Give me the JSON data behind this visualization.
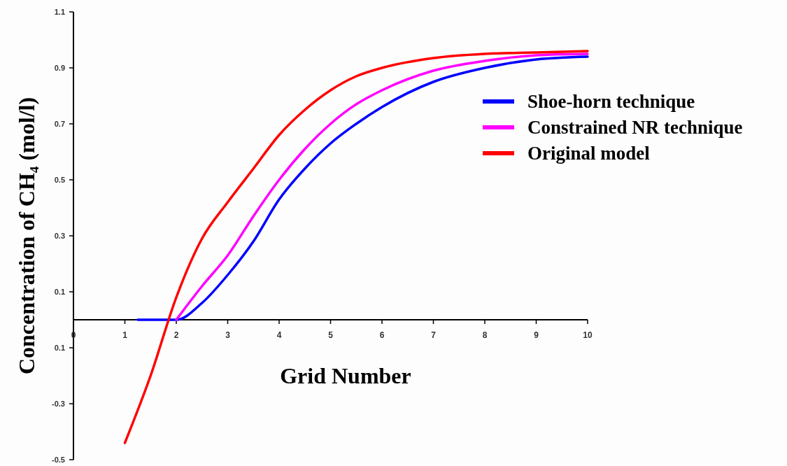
{
  "chart_data": {
    "type": "line",
    "xlabel": "Grid Number",
    "ylabel": "Concentration of CH₄ (mol/l)",
    "xlim": [
      0,
      10
    ],
    "xticks": [
      0,
      1,
      2,
      3,
      4,
      5,
      6,
      7,
      8,
      9,
      10
    ],
    "ylim": [
      -0.5,
      1.1
    ],
    "yticks": [
      -0.5,
      -0.3,
      {
        "value": -0.1,
        "label": "0.1"
      },
      0.1,
      0.3,
      0.5,
      0.7,
      0.9,
      1.1
    ],
    "grid": false,
    "legend": "right",
    "marker": "none",
    "line_style": "solid",
    "series": [
      {
        "name": "Shoe-horn technique",
        "color": "#0000ff",
        "x": [
          1.25,
          2,
          2.5,
          3,
          3.5,
          4,
          4.5,
          5,
          5.5,
          6,
          7,
          8,
          9,
          10
        ],
        "values": [
          0,
          0,
          0.06,
          0.16,
          0.28,
          0.43,
          0.54,
          0.63,
          0.7,
          0.76,
          0.85,
          0.9,
          0.93,
          0.94
        ]
      },
      {
        "name": "Constrained NR technique",
        "color": "#ff00ff",
        "x": [
          2,
          2.5,
          3,
          3.5,
          4,
          4.5,
          5,
          5.5,
          6,
          7,
          8,
          9,
          10
        ],
        "values": [
          0,
          0.12,
          0.23,
          0.37,
          0.5,
          0.61,
          0.7,
          0.77,
          0.82,
          0.89,
          0.925,
          0.945,
          0.95
        ]
      },
      {
        "name": "Original model",
        "color": "#ff0000",
        "x": [
          1,
          1.5,
          2,
          2.5,
          3,
          3.5,
          4,
          4.5,
          5,
          5.5,
          6,
          7,
          8,
          9,
          10
        ],
        "values": [
          -0.44,
          -0.2,
          0.08,
          0.29,
          0.42,
          0.54,
          0.66,
          0.75,
          0.82,
          0.87,
          0.9,
          0.935,
          0.95,
          0.955,
          0.96
        ]
      }
    ]
  }
}
